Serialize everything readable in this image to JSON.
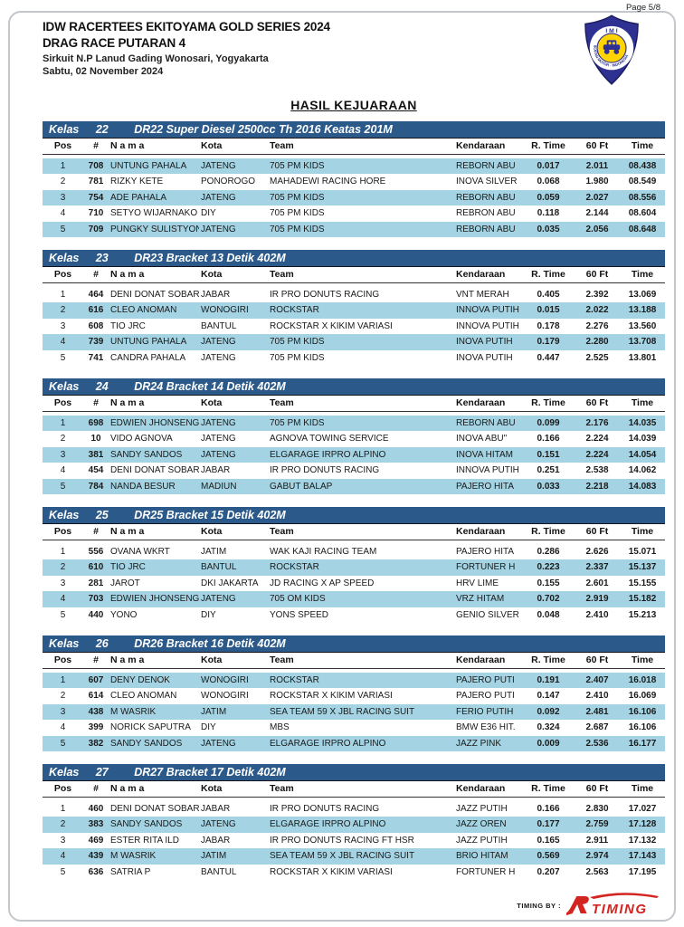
{
  "page": {
    "page_number": "Page 5/8",
    "event_title": "IDW RACERTEES EKITOYAMA GOLD SERIES 2024",
    "event_subtitle": "DRAG RACE PUTARAN 4",
    "venue": "Sirkuit N.P Lanud Gading Wonosari, Yogyakarta",
    "date": "Sabtu, 02 November 2024",
    "document_title": "HASIL KEJUARAAN",
    "footer_label": "TIMING BY :",
    "footer_logo_text": "TIMING"
  },
  "imi_logo": {
    "top_text": "I M I",
    "ring_text": "IKATAN MOTOR · INDONESIA"
  },
  "colors": {
    "class_bar": "#2b5a8a",
    "row_highlight": "#a4d4e4",
    "logo_navy": "#2e3192",
    "logo_yellow": "#ffd400",
    "timing_red": "#d42420"
  },
  "table_headers": [
    "Pos",
    "#",
    "N a m a",
    "Kota",
    "Team",
    "Kendaraan",
    "R. Time",
    "60 Ft",
    "Time"
  ],
  "classes": [
    {
      "label": "Kelas",
      "number": "22",
      "title": "DR22 Super Diesel 2500cc Th 2016 Keatas 201M",
      "rows": [
        {
          "pos": "1",
          "num": "708",
          "nama": "UNTUNG PAHALA",
          "kota": "JATENG",
          "team": "705 PM KIDS",
          "kendaraan": "REBORN ABU",
          "r_time": "0.017",
          "ft_60": "2.011",
          "time": "08.438",
          "highlight": true
        },
        {
          "pos": "2",
          "num": "781",
          "nama": "RIZKY KETE",
          "kota": "PONOROGO",
          "team": "MAHADEWI RACING HORE",
          "kendaraan": "INOVA SILVER",
          "r_time": "0.068",
          "ft_60": "1.980",
          "time": "08.549",
          "highlight": false
        },
        {
          "pos": "3",
          "num": "754",
          "nama": "ADE PAHALA",
          "kota": "JATENG",
          "team": "705 PM KIDS",
          "kendaraan": "REBORN ABU",
          "r_time": "0.059",
          "ft_60": "2.027",
          "time": "08.556",
          "highlight": true
        },
        {
          "pos": "4",
          "num": "710",
          "nama": "SETYO WIJARNAKO",
          "kota": "DIY",
          "team": "705 PM KIDS",
          "kendaraan": "REBRON ABU",
          "r_time": "0.118",
          "ft_60": "2.144",
          "time": "08.604",
          "highlight": false
        },
        {
          "pos": "5",
          "num": "709",
          "nama": "PUNGKY SULISTYONO",
          "kota": "JATENG",
          "team": "705 PM KIDS",
          "kendaraan": "REBORN ABU",
          "r_time": "0.035",
          "ft_60": "2.056",
          "time": "08.648",
          "highlight": true
        }
      ]
    },
    {
      "label": "Kelas",
      "number": "23",
      "title": "DR23 Bracket 13 Detik 402M",
      "rows": [
        {
          "pos": "1",
          "num": "464",
          "nama": "DENI DONAT SOBARI",
          "kota": "JABAR",
          "team": "IR PRO DONUTS RACING",
          "kendaraan": "VNT MERAH",
          "r_time": "0.405",
          "ft_60": "2.392",
          "time": "13.069",
          "highlight": false
        },
        {
          "pos": "2",
          "num": "616",
          "nama": "CLEO ANOMAN",
          "kota": "WONOGIRI",
          "team": "ROCKSTAR",
          "kendaraan": "INNOVA PUTIH",
          "r_time": "0.015",
          "ft_60": "2.022",
          "time": "13.188",
          "highlight": true
        },
        {
          "pos": "3",
          "num": "608",
          "nama": "TIO JRC",
          "kota": "BANTUL",
          "team": "ROCKSTAR X KIKIM VARIASI",
          "kendaraan": "INNOVA PUTIH",
          "r_time": "0.178",
          "ft_60": "2.276",
          "time": "13.560",
          "highlight": false
        },
        {
          "pos": "4",
          "num": "739",
          "nama": "UNTUNG PAHALA",
          "kota": "JATENG",
          "team": "705 PM KIDS",
          "kendaraan": "INOVA PUTIH",
          "r_time": "0.179",
          "ft_60": "2.280",
          "time": "13.708",
          "highlight": true
        },
        {
          "pos": "5",
          "num": "741",
          "nama": "CANDRA PAHALA",
          "kota": "JATENG",
          "team": "705 PM KIDS",
          "kendaraan": "INOVA PUTIH",
          "r_time": "0.447",
          "ft_60": "2.525",
          "time": "13.801",
          "highlight": false
        }
      ]
    },
    {
      "label": "Kelas",
      "number": "24",
      "title": "DR24 Bracket 14 Detik 402M",
      "rows": [
        {
          "pos": "1",
          "num": "698",
          "nama": "EDWIEN JHONSENG",
          "kota": "JATENG",
          "team": "705 PM KIDS",
          "kendaraan": "REBORN ABU",
          "r_time": "0.099",
          "ft_60": "2.176",
          "time": "14.035",
          "highlight": true
        },
        {
          "pos": "2",
          "num": "10",
          "nama": "VIDO AGNOVA",
          "kota": "JATENG",
          "team": "AGNOVA TOWING SERVICE",
          "kendaraan": "INOVA ABU\"",
          "r_time": "0.166",
          "ft_60": "2.224",
          "time": "14.039",
          "highlight": false
        },
        {
          "pos": "3",
          "num": "381",
          "nama": "SANDY SANDOS",
          "kota": "JATENG",
          "team": "ELGARAGE IRPRO ALPINO",
          "kendaraan": "INOVA HITAM",
          "r_time": "0.151",
          "ft_60": "2.224",
          "time": "14.054",
          "highlight": true
        },
        {
          "pos": "4",
          "num": "454",
          "nama": "DENI DONAT SOBARI",
          "kota": "JABAR",
          "team": "IR PRO DONUTS RACING",
          "kendaraan": "INNOVA PUTIH",
          "r_time": "0.251",
          "ft_60": "2.538",
          "time": "14.062",
          "highlight": false
        },
        {
          "pos": "5",
          "num": "784",
          "nama": "NANDA BESUR",
          "kota": "MADIUN",
          "team": "GABUT BALAP",
          "kendaraan": "PAJERO HITA",
          "r_time": "0.033",
          "ft_60": "2.218",
          "time": "14.083",
          "highlight": true
        }
      ]
    },
    {
      "label": "Kelas",
      "number": "25",
      "title": "DR25 Bracket 15 Detik 402M",
      "rows": [
        {
          "pos": "1",
          "num": "556",
          "nama": "OVANA WKRT",
          "kota": "JATIM",
          "team": "WAK KAJI RACING TEAM",
          "kendaraan": "PAJERO HITA",
          "r_time": "0.286",
          "ft_60": "2.626",
          "time": "15.071",
          "highlight": false
        },
        {
          "pos": "2",
          "num": "610",
          "nama": "TIO JRC",
          "kota": "BANTUL",
          "team": "ROCKSTAR",
          "kendaraan": "FORTUNER H",
          "r_time": "0.223",
          "ft_60": "2.337",
          "time": "15.137",
          "highlight": true
        },
        {
          "pos": "3",
          "num": "281",
          "nama": "JAROT",
          "kota": "DKI JAKARTA",
          "team": "JD RACING X AP SPEED",
          "kendaraan": "HRV LIME",
          "r_time": "0.155",
          "ft_60": "2.601",
          "time": "15.155",
          "highlight": false
        },
        {
          "pos": "4",
          "num": "703",
          "nama": "EDWIEN JHONSENG",
          "kota": "JATENG",
          "team": "705 OM KIDS",
          "kendaraan": "VRZ HITAM",
          "r_time": "0.702",
          "ft_60": "2.919",
          "time": "15.182",
          "highlight": true
        },
        {
          "pos": "5",
          "num": "440",
          "nama": "YONO",
          "kota": "DIY",
          "team": "YONS SPEED",
          "kendaraan": "GENIO SILVER",
          "r_time": "0.048",
          "ft_60": "2.410",
          "time": "15.213",
          "highlight": false
        }
      ]
    },
    {
      "label": "Kelas",
      "number": "26",
      "title": "DR26 Bracket 16 Detik 402M",
      "rows": [
        {
          "pos": "1",
          "num": "607",
          "nama": "DENY DENOK",
          "kota": "WONOGIRI",
          "team": "ROCKSTAR",
          "kendaraan": "PAJERO PUTI",
          "r_time": "0.191",
          "ft_60": "2.407",
          "time": "16.018",
          "highlight": true
        },
        {
          "pos": "2",
          "num": "614",
          "nama": "CLEO ANOMAN",
          "kota": "WONOGIRI",
          "team": "ROCKSTAR X KIKIM VARIASI",
          "kendaraan": "PAJERO PUTI",
          "r_time": "0.147",
          "ft_60": "2.410",
          "time": "16.069",
          "highlight": false
        },
        {
          "pos": "3",
          "num": "438",
          "nama": "M WASRIK",
          "kota": "JATIM",
          "team": "SEA TEAM 59 X JBL RACING SUIT",
          "kendaraan": "FERIO PUTIH",
          "r_time": "0.092",
          "ft_60": "2.481",
          "time": "16.106",
          "highlight": true
        },
        {
          "pos": "4",
          "num": "399",
          "nama": "NORICK SAPUTRA",
          "kota": "DIY",
          "team": "MBS",
          "kendaraan": "BMW E36 HIT.",
          "r_time": "0.324",
          "ft_60": "2.687",
          "time": "16.106",
          "highlight": false
        },
        {
          "pos": "5",
          "num": "382",
          "nama": "SANDY SANDOS",
          "kota": "JATENG",
          "team": "ELGARAGE IRPRO ALPINO",
          "kendaraan": "JAZZ PINK",
          "r_time": "0.009",
          "ft_60": "2.536",
          "time": "16.177",
          "highlight": true
        }
      ]
    },
    {
      "label": "Kelas",
      "number": "27",
      "title": "DR27 Bracket 17 Detik 402M",
      "rows": [
        {
          "pos": "1",
          "num": "460",
          "nama": "DENI DONAT SOBARI",
          "kota": "JABAR",
          "team": "IR PRO DONUTS RACING",
          "kendaraan": "JAZZ PUTIH",
          "r_time": "0.166",
          "ft_60": "2.830",
          "time": "17.027",
          "highlight": false
        },
        {
          "pos": "2",
          "num": "383",
          "nama": "SANDY SANDOS",
          "kota": "JATENG",
          "team": "ELGARAGE IRPRO ALPINO",
          "kendaraan": "JAZZ OREN",
          "r_time": "0.177",
          "ft_60": "2.759",
          "time": "17.128",
          "highlight": true
        },
        {
          "pos": "3",
          "num": "469",
          "nama": "ESTER RITA ILD",
          "kota": "JABAR",
          "team": "IR PRO DONUTS RACING FT HSR",
          "kendaraan": "JAZZ PUTIH",
          "r_time": "0.165",
          "ft_60": "2.911",
          "time": "17.132",
          "highlight": false
        },
        {
          "pos": "4",
          "num": "439",
          "nama": "M WASRIK",
          "kota": "JATIM",
          "team": "SEA TEAM 59 X JBL RACING SUIT",
          "kendaraan": "BRIO HITAM",
          "r_time": "0.569",
          "ft_60": "2.974",
          "time": "17.143",
          "highlight": true
        },
        {
          "pos": "5",
          "num": "636",
          "nama": "SATRIA P",
          "kota": "BANTUL",
          "team": "ROCKSTAR X KIKIM VARIASI",
          "kendaraan": "FORTUNER H",
          "r_time": "0.207",
          "ft_60": "2.563",
          "time": "17.195",
          "highlight": false
        }
      ]
    }
  ]
}
